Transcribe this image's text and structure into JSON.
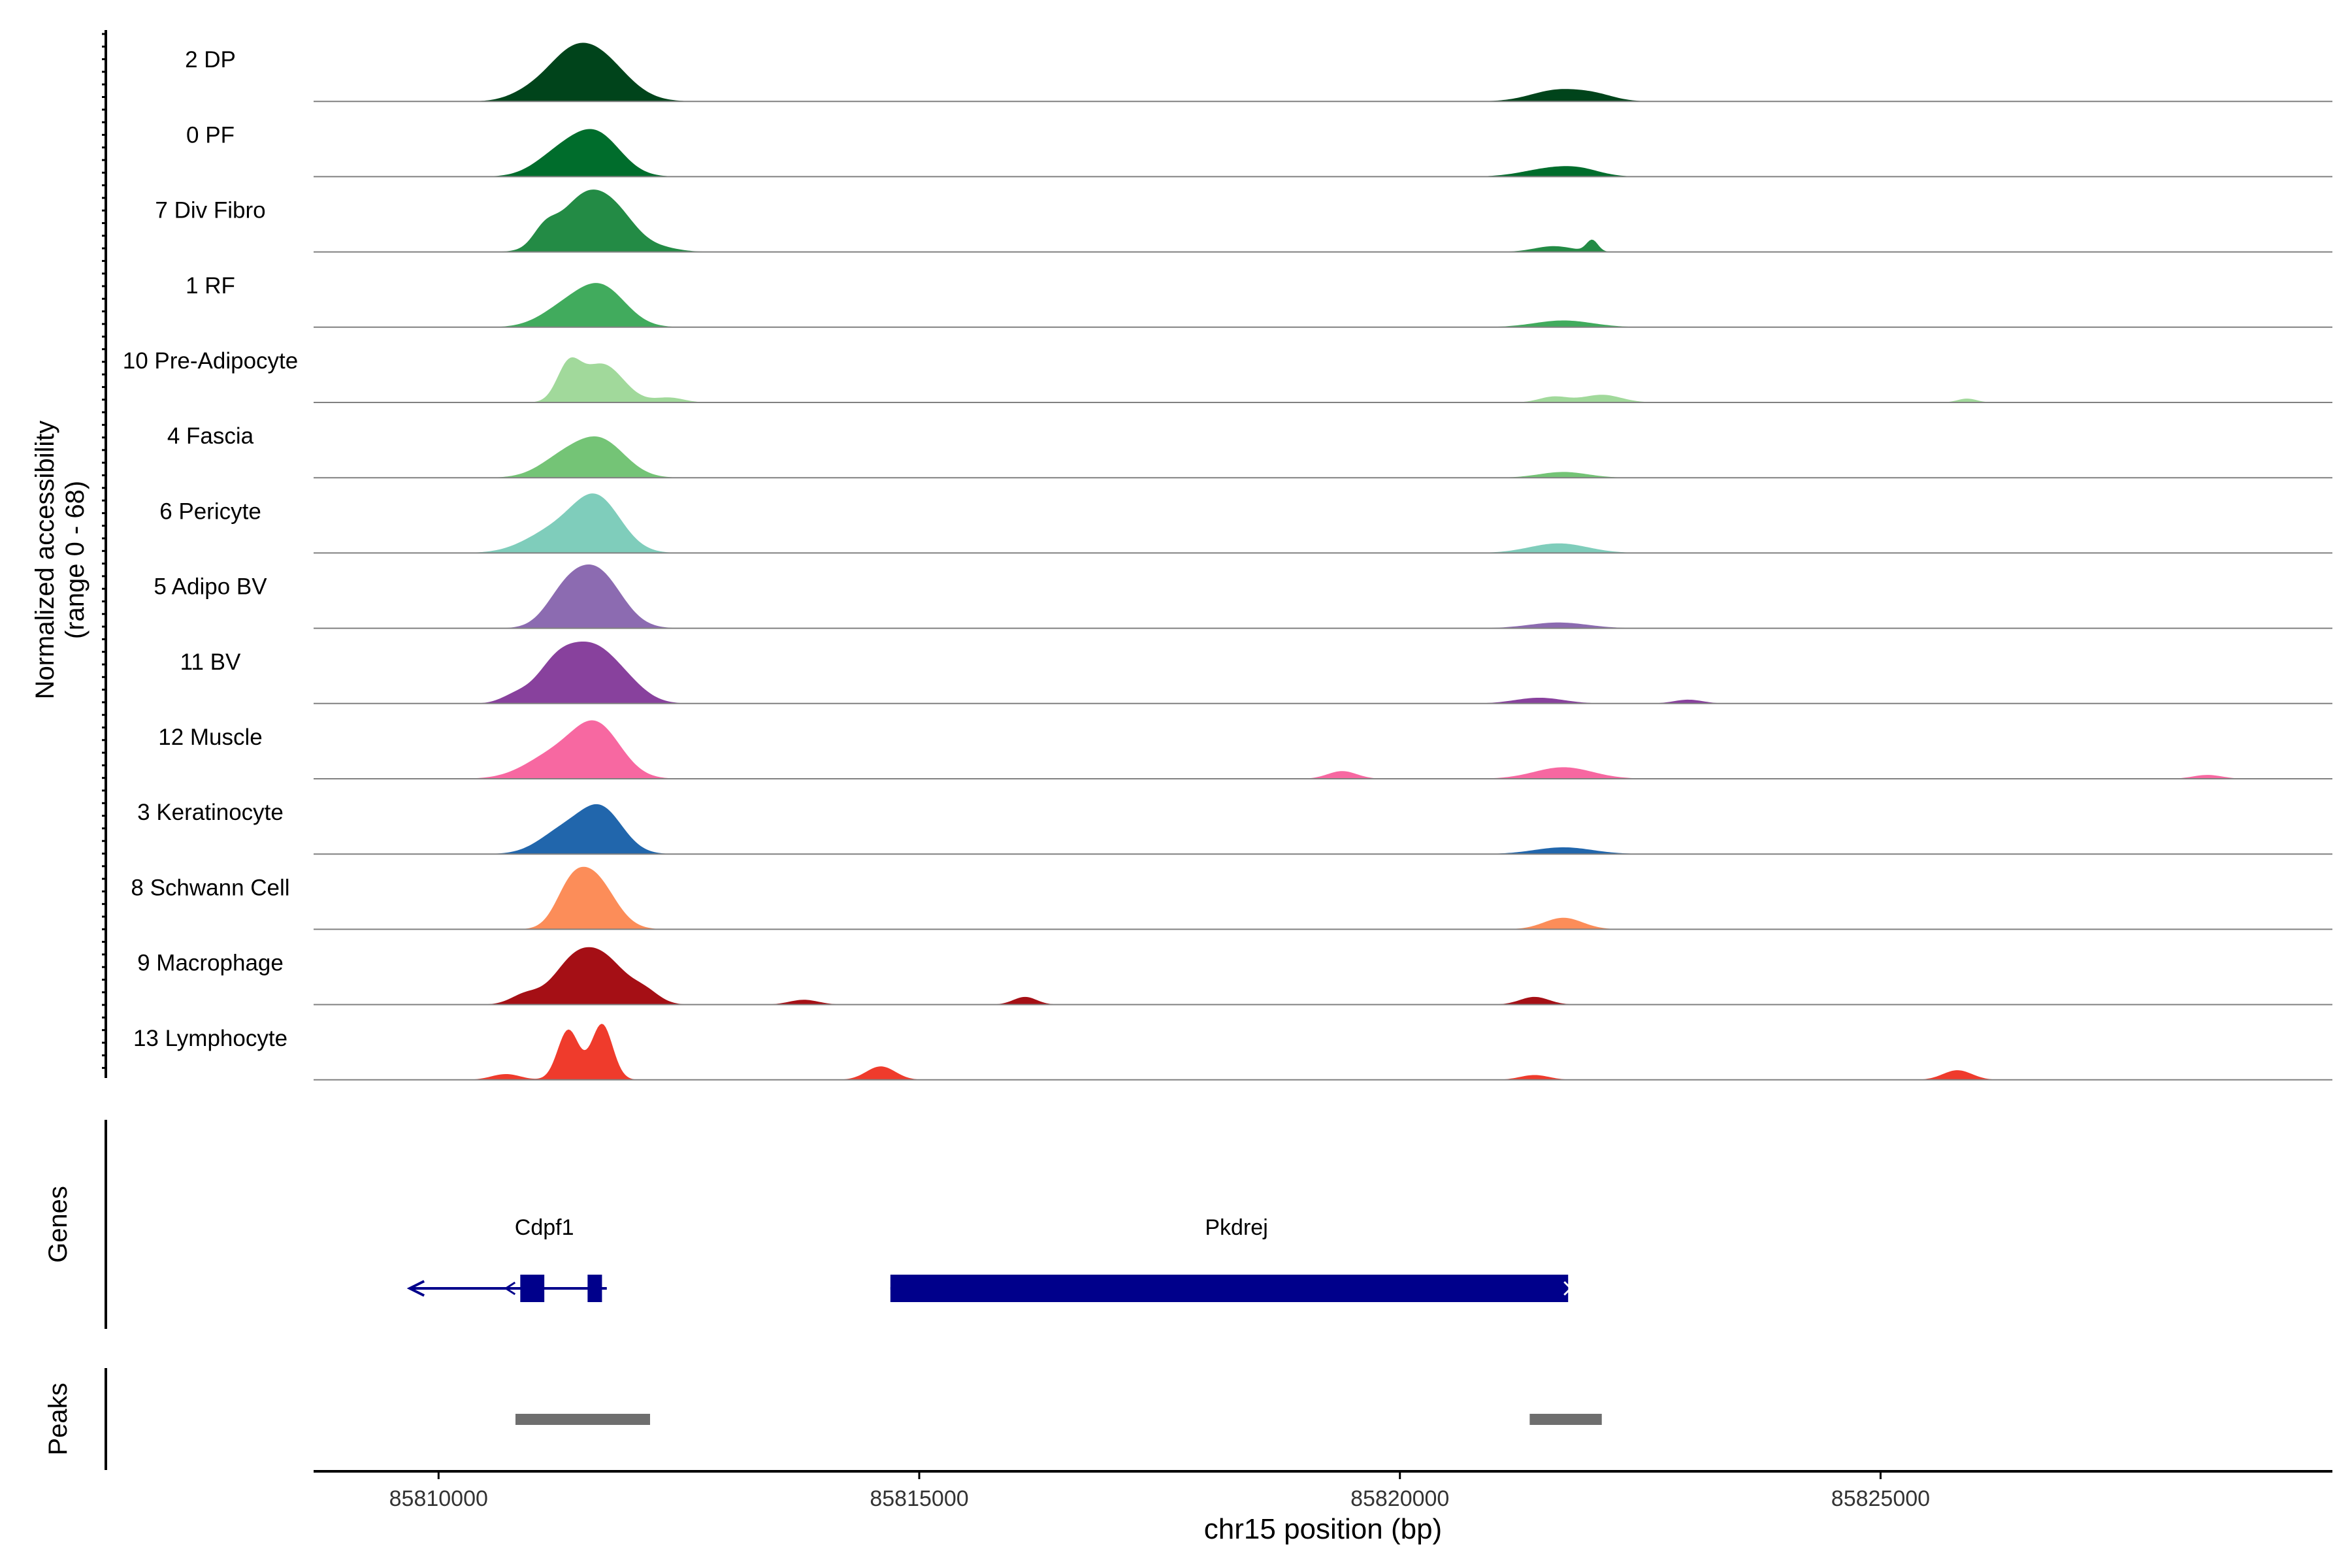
{
  "chart_data": {
    "type": "area",
    "title": "",
    "ylabel_line1": "Normalized accessibility",
    "ylabel_line2": "(range 0 - 68)",
    "y_range": [
      0,
      68
    ],
    "xlabel": "chr15 position (bp)",
    "xlim": [
      85808700,
      85829700
    ],
    "x_ticks": [
      85810000,
      85815000,
      85820000,
      85825000
    ],
    "x_tick_labels": [
      "85810000",
      "85815000",
      "85820000",
      "85825000"
    ],
    "tracks": [
      {
        "name": "2 DP",
        "color": "#00441B",
        "peaks": [
          [
            85811650,
            46,
            300
          ],
          [
            85811300,
            28,
            250
          ],
          [
            85810900,
            6,
            200
          ],
          [
            85821650,
            12,
            280
          ],
          [
            85822050,
            5,
            200
          ]
        ]
      },
      {
        "name": "0 PF",
        "color": "#006D2C",
        "peaks": [
          [
            85811650,
            42,
            250
          ],
          [
            85811250,
            22,
            250
          ],
          [
            85821600,
            9,
            300
          ],
          [
            85821900,
            4,
            200
          ]
        ]
      },
      {
        "name": "7 Div Fibro",
        "color": "#238B45",
        "peaks": [
          [
            85811550,
            60,
            280
          ],
          [
            85811100,
            16,
            120
          ],
          [
            85811900,
            18,
            200
          ],
          [
            85822000,
            12,
            60
          ],
          [
            85821600,
            6,
            200
          ],
          [
            85812300,
            4,
            200
          ]
        ]
      },
      {
        "name": "1 RF",
        "color": "#41AB5D",
        "peaks": [
          [
            85811700,
            40,
            250
          ],
          [
            85811300,
            18,
            250
          ],
          [
            85821700,
            7,
            300
          ]
        ]
      },
      {
        "name": "10 Pre-Adipocyte",
        "color": "#A1D99B",
        "peaks": [
          [
            85811700,
            40,
            220
          ],
          [
            85811350,
            34,
            120
          ],
          [
            85822100,
            8,
            200
          ],
          [
            85821600,
            6,
            150
          ],
          [
            85812400,
            5,
            150
          ],
          [
            85825900,
            4,
            100
          ]
        ]
      },
      {
        "name": "4 Fascia",
        "color": "#74C476",
        "peaks": [
          [
            85811700,
            36,
            250
          ],
          [
            85811300,
            20,
            250
          ],
          [
            85821700,
            6,
            250
          ]
        ]
      },
      {
        "name": "6 Pericyte",
        "color": "#7FCDBB",
        "peaks": [
          [
            85811650,
            54,
            250
          ],
          [
            85811200,
            22,
            300
          ],
          [
            85821650,
            10,
            300
          ]
        ]
      },
      {
        "name": "5 Adipo BV",
        "color": "#8C6BB1",
        "peaks": [
          [
            85811650,
            58,
            250
          ],
          [
            85811300,
            28,
            200
          ],
          [
            85821650,
            6,
            300
          ]
        ]
      },
      {
        "name": "11 BV",
        "color": "#88419D",
        "peaks": [
          [
            85811600,
            58,
            280
          ],
          [
            85811200,
            30,
            200
          ],
          [
            85810800,
            8,
            150
          ],
          [
            85812000,
            8,
            200
          ],
          [
            85821450,
            6,
            250
          ],
          [
            85823000,
            4,
            150
          ]
        ]
      },
      {
        "name": "12 Muscle",
        "color": "#F768A1",
        "peaks": [
          [
            85811650,
            52,
            250
          ],
          [
            85811200,
            24,
            300
          ],
          [
            85821700,
            12,
            300
          ],
          [
            85819400,
            8,
            150
          ],
          [
            85828400,
            4,
            150
          ]
        ]
      },
      {
        "name": "3 Keratinocyte",
        "color": "#2166AC",
        "peaks": [
          [
            85811700,
            44,
            220
          ],
          [
            85811300,
            24,
            250
          ],
          [
            85821700,
            7,
            300
          ]
        ]
      },
      {
        "name": "8 Schwann Cell",
        "color": "#FC8D59",
        "peaks": [
          [
            85811600,
            56,
            220
          ],
          [
            85811350,
            24,
            150
          ],
          [
            85821700,
            12,
            200
          ]
        ]
      },
      {
        "name": "9 Macrophage",
        "color": "#A50F15",
        "peaks": [
          [
            85811400,
            42,
            220
          ],
          [
            85811750,
            40,
            220
          ],
          [
            85810900,
            10,
            150
          ],
          [
            85812150,
            12,
            150
          ],
          [
            85816100,
            8,
            120
          ],
          [
            85821400,
            8,
            150
          ],
          [
            85813800,
            5,
            150
          ]
        ]
      },
      {
        "name": "13 Lymphocyte",
        "color": "#EF3B2C",
        "peaks": [
          [
            85811350,
            52,
            110
          ],
          [
            85811700,
            58,
            110
          ],
          [
            85814600,
            14,
            150
          ],
          [
            85810700,
            6,
            150
          ],
          [
            85825800,
            10,
            150
          ],
          [
            85821400,
            5,
            150
          ]
        ]
      }
    ],
    "genes": [
      {
        "name": "Cdpf1",
        "strand": "-",
        "start": 85809700,
        "end": 85811750,
        "exons": [
          [
            85810850,
            85811100
          ],
          [
            85811550,
            85811700
          ]
        ]
      },
      {
        "name": "Pkdrej",
        "strand": "+",
        "start": 85814700,
        "end": 85821750,
        "exons": [
          [
            85814700,
            85821750
          ]
        ]
      }
    ],
    "genes_label": "Genes",
    "peaks_label": "Peaks",
    "peak_regions": [
      [
        85810800,
        85812200
      ],
      [
        85821350,
        85822100
      ]
    ],
    "colors": {
      "baseline": "#808080",
      "gene": "#00008B",
      "peak_region": "#6E6E6E",
      "axis": "#000000"
    }
  }
}
